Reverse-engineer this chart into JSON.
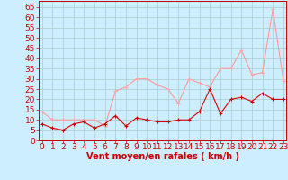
{
  "x": [
    0,
    1,
    2,
    3,
    4,
    5,
    6,
    7,
    8,
    9,
    10,
    11,
    12,
    13,
    14,
    15,
    16,
    17,
    18,
    19,
    20,
    21,
    22,
    23
  ],
  "wind_avg": [
    8,
    6,
    5,
    8,
    9,
    6,
    8,
    12,
    7,
    11,
    10,
    9,
    9,
    10,
    10,
    14,
    25,
    13,
    20,
    21,
    19,
    23,
    20,
    20
  ],
  "wind_gust": [
    14,
    10,
    10,
    10,
    10,
    10,
    7,
    24,
    26,
    30,
    30,
    27,
    25,
    18,
    30,
    28,
    26,
    35,
    35,
    44,
    32,
    33,
    64,
    29
  ],
  "bg_color": "#cceeff",
  "grid_color": "#aacccc",
  "line_avg_color": "#dd0000",
  "line_gust_color": "#ff9999",
  "marker_avg_color": "#cc0000",
  "marker_gust_color": "#ffaaaa",
  "xlabel": "Vent moyen/en rafales ( km/h )",
  "ylabel_ticks": [
    0,
    5,
    10,
    15,
    20,
    25,
    30,
    35,
    40,
    45,
    50,
    55,
    60,
    65
  ],
  "ylim": [
    0,
    68
  ],
  "xlim": [
    -0.3,
    23.3
  ],
  "xlabel_fontsize": 7,
  "tick_fontsize": 6.5
}
